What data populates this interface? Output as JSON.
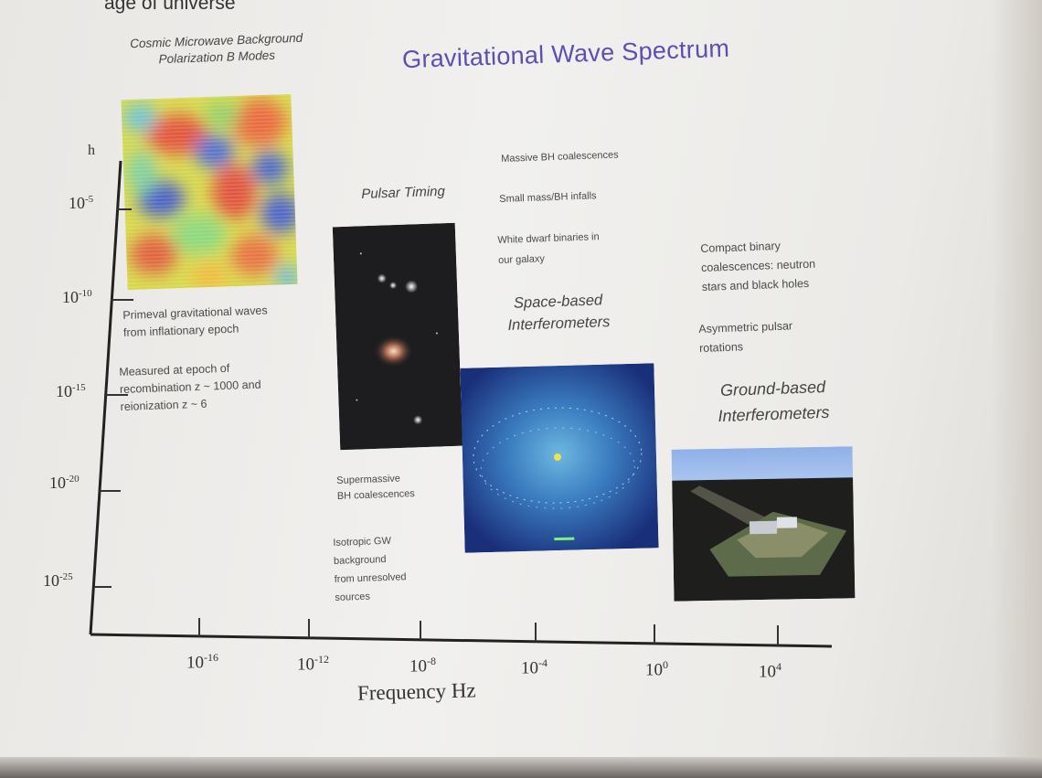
{
  "top_cut_text": "age of universe",
  "title": "Gravitational Wave Spectrum",
  "axes": {
    "y_symbol": "h",
    "y_ticks": [
      {
        "base": "10",
        "exp": "-5"
      },
      {
        "base": "10",
        "exp": "-10"
      },
      {
        "base": "10",
        "exp": "-15"
      },
      {
        "base": "10",
        "exp": "-20"
      },
      {
        "base": "10",
        "exp": "-25"
      }
    ],
    "x_ticks": [
      {
        "base": "10",
        "exp": "-16"
      },
      {
        "base": "10",
        "exp": "-12"
      },
      {
        "base": "10",
        "exp": "-8"
      },
      {
        "base": "10",
        "exp": "-4"
      },
      {
        "base": "10",
        "exp": "0"
      },
      {
        "base": "10",
        "exp": "4"
      }
    ],
    "x_label": "Frequency Hz"
  },
  "sections": {
    "cmb": {
      "caption_line1": "Cosmic Microwave Background",
      "caption_line2": "Polarization B Modes",
      "note1_line1": "Primeval gravitational waves",
      "note1_line2": "from inflationary epoch",
      "note2_line1": "Measured at epoch of",
      "note2_line2": "recombination z ~ 1000 and",
      "note2_line3": "reionization z ~ 6"
    },
    "pulsar": {
      "caption": "Pulsar Timing",
      "note1_line1": "Supermassive",
      "note1_line2": "BH coalescences",
      "note2_line1": "Isotropic GW",
      "note2_line2": "background",
      "note2_line3": "from unresolved",
      "note2_line4": "sources"
    },
    "space": {
      "source1": "Massive BH coalescences",
      "source2": "Small mass/BH infalls",
      "source3_line1": "White dwarf binaries in",
      "source3_line2": "our galaxy",
      "caption_line1": "Space-based",
      "caption_line2": "Interferometers"
    },
    "ground": {
      "source1_line1": "Compact binary",
      "source1_line2": "coalescences: neutron",
      "source1_line3": "stars and black holes",
      "source2_line1": "Asymmetric pulsar",
      "source2_line2": "rotations",
      "caption_line1": "Ground-based",
      "caption_line2": "Interferometers"
    }
  },
  "colors": {
    "title": "#5b4fb3",
    "axis": "#222222"
  }
}
